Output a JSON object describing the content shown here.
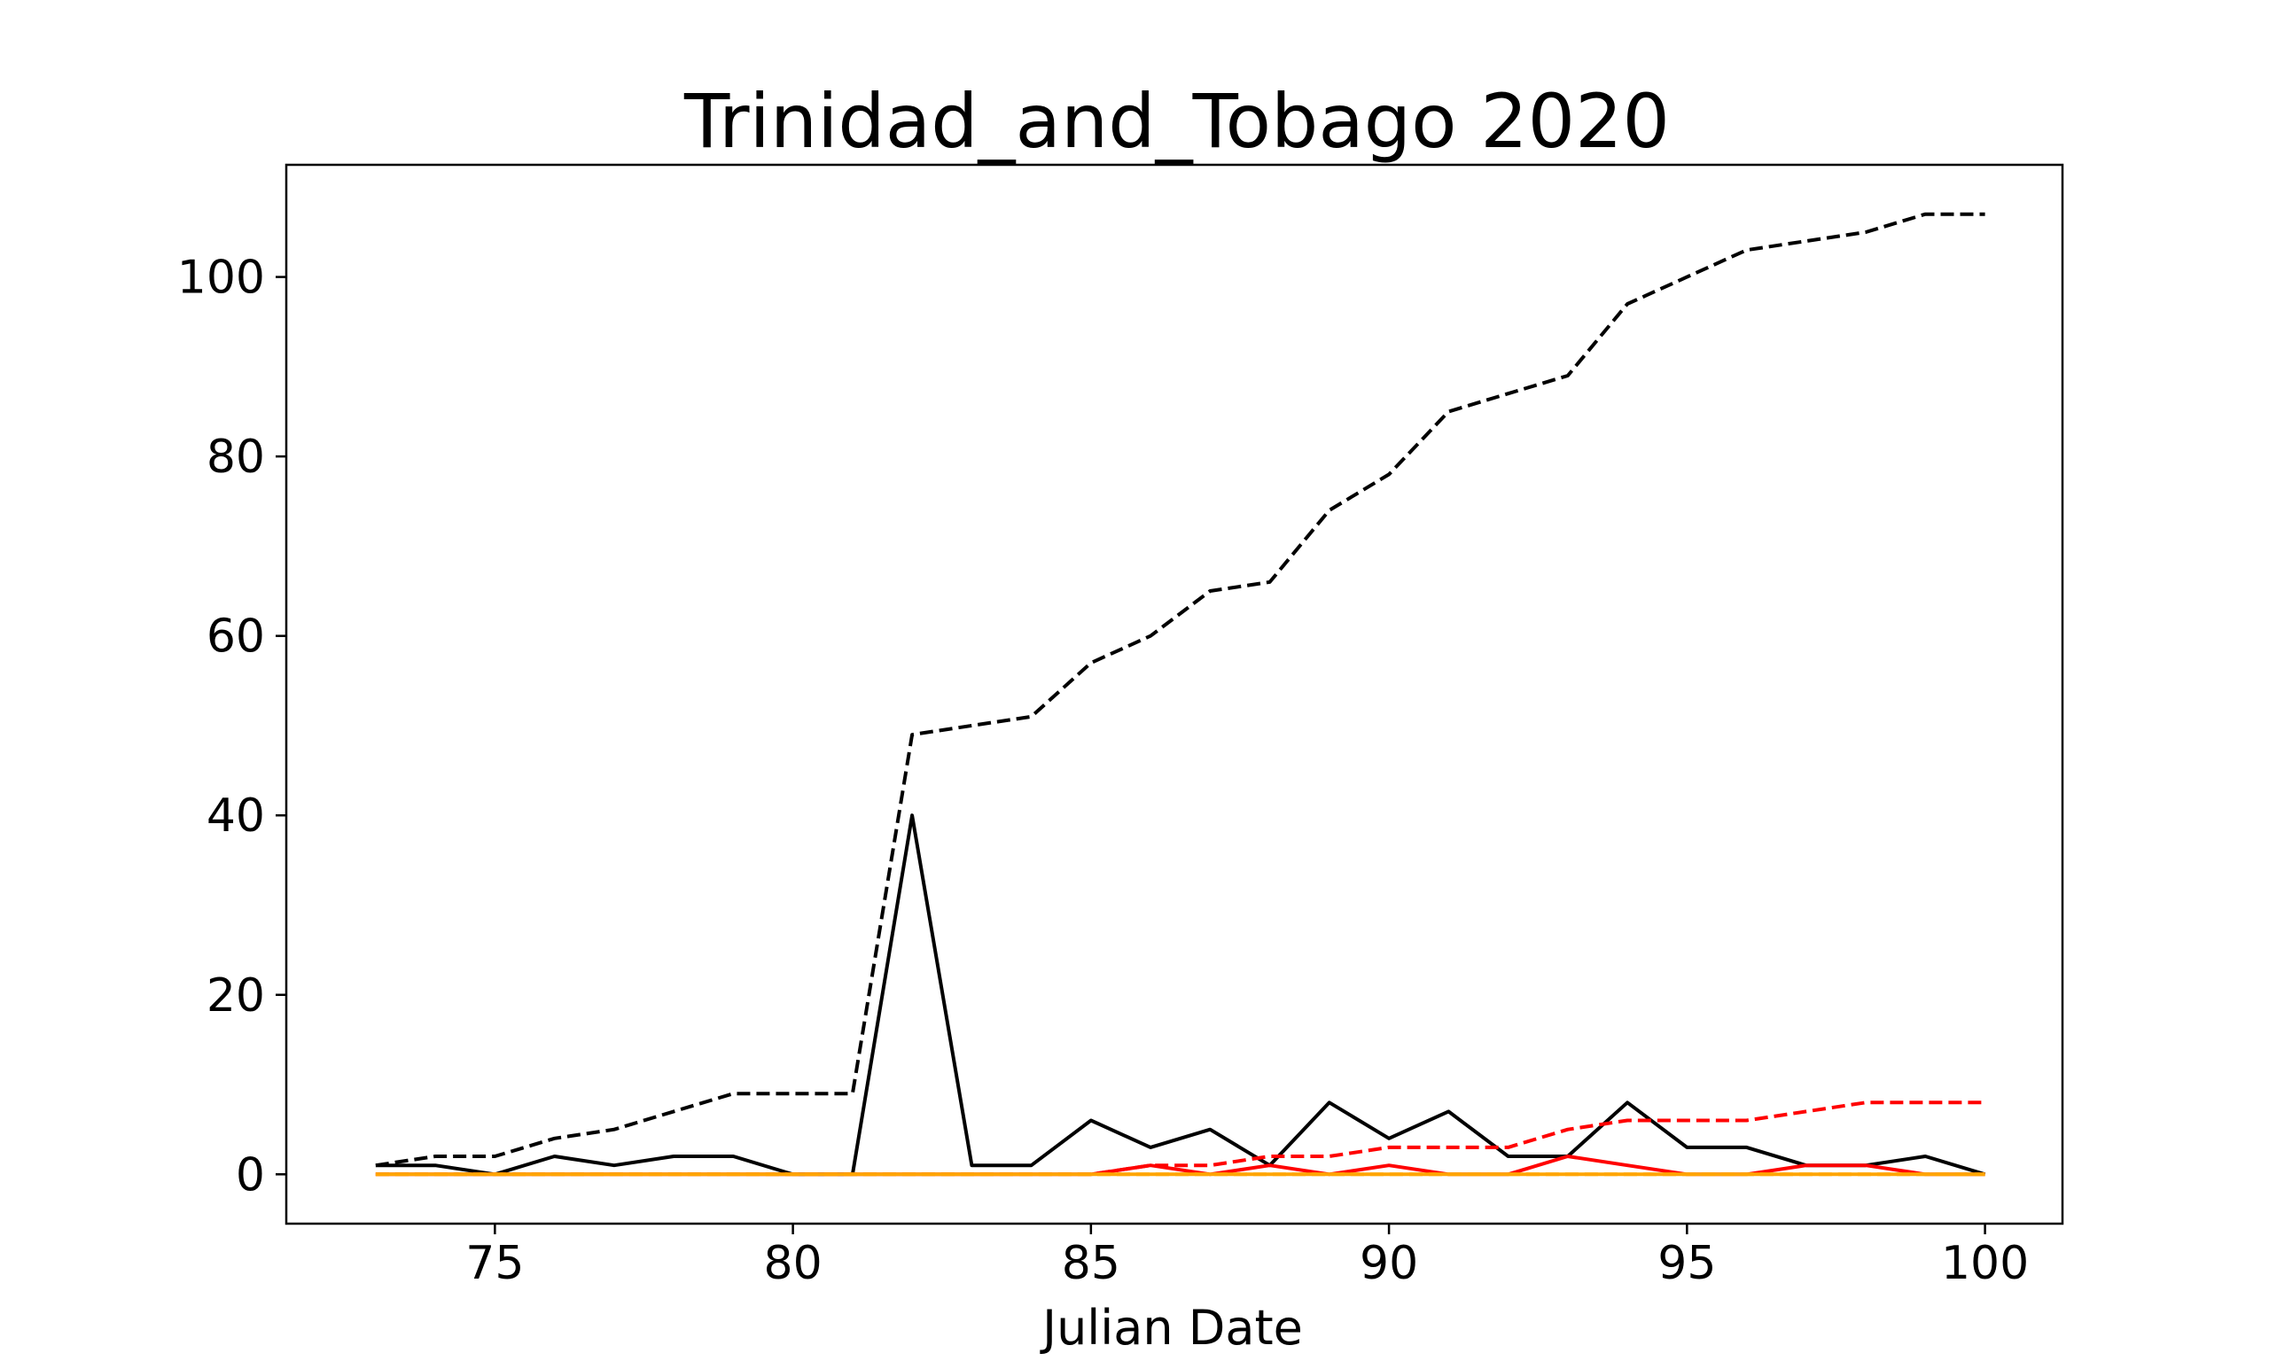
{
  "chart_data": {
    "type": "line",
    "title": "Trinidad_and_Tobago 2020",
    "xlabel": "Julian Date",
    "ylabel": "",
    "xlim": [
      71.5,
      101.3
    ],
    "ylim": [
      -5.5,
      112.5
    ],
    "xticks": [
      75,
      80,
      85,
      90,
      95,
      100
    ],
    "yticks": [
      0,
      20,
      40,
      60,
      80,
      100
    ],
    "grid": false,
    "x": [
      73,
      74,
      75,
      76,
      77,
      78,
      79,
      80,
      81,
      82,
      83,
      84,
      85,
      86,
      87,
      88,
      89,
      90,
      91,
      92,
      93,
      94,
      95,
      96,
      97,
      98,
      99,
      100
    ],
    "series": [
      {
        "color": "#000000",
        "dash": "dashed",
        "values": [
          1,
          2,
          2,
          4,
          5,
          7,
          9,
          9,
          9,
          49,
          50,
          51,
          57,
          60,
          65,
          66,
          74,
          78,
          85,
          87,
          89,
          97,
          100,
          103,
          104,
          105,
          107,
          107
        ]
      },
      {
        "color": "#000000",
        "dash": "solid",
        "values": [
          1,
          1,
          0,
          2,
          1,
          2,
          2,
          0,
          0,
          40,
          1,
          1,
          6,
          3,
          5,
          1,
          8,
          4,
          7,
          2,
          2,
          8,
          3,
          3,
          1,
          1,
          2,
          0
        ]
      },
      {
        "color": "#ff0000",
        "dash": "dashed",
        "values": [
          0,
          0,
          0,
          0,
          0,
          0,
          0,
          0,
          0,
          0,
          0,
          0,
          0,
          1,
          1,
          2,
          2,
          3,
          3,
          3,
          5,
          6,
          6,
          6,
          7,
          8,
          8,
          8
        ]
      },
      {
        "color": "#ff0000",
        "dash": "solid",
        "values": [
          0,
          0,
          0,
          0,
          0,
          0,
          0,
          0,
          0,
          0,
          0,
          0,
          0,
          1,
          0,
          1,
          0,
          1,
          0,
          0,
          2,
          1,
          0,
          0,
          1,
          1,
          0,
          0
        ]
      },
      {
        "color": "#ffa500",
        "dash": "dashed",
        "values": [
          0,
          0,
          0,
          0,
          0,
          0,
          0,
          0,
          0,
          0,
          0,
          0,
          0,
          0,
          0,
          0,
          0,
          0,
          0,
          0,
          0,
          0,
          0,
          0,
          0,
          0,
          0,
          0
        ]
      },
      {
        "color": "#ffa500",
        "dash": "solid",
        "values": [
          0,
          0,
          0,
          0,
          0,
          0,
          0,
          0,
          0,
          0,
          0,
          0,
          0,
          0,
          0,
          0,
          0,
          0,
          0,
          0,
          0,
          0,
          0,
          0,
          0,
          0,
          0,
          0
        ]
      }
    ]
  }
}
